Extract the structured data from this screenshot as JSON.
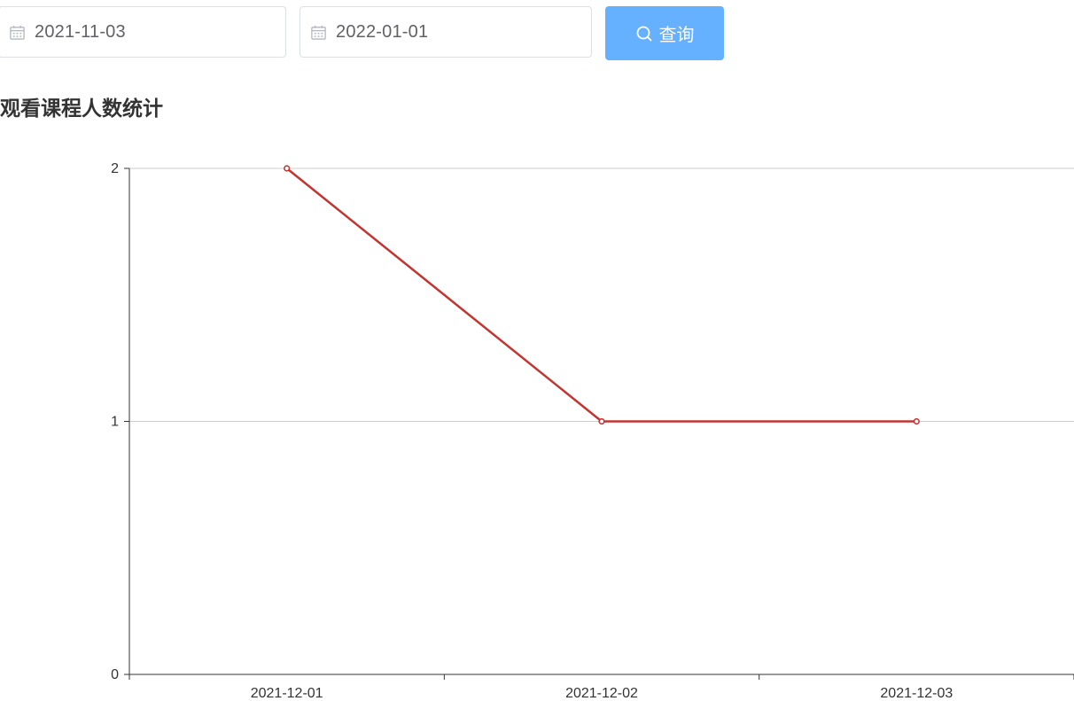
{
  "filters": {
    "start_date": "2021-11-03",
    "end_date": "2022-01-01",
    "query_label": "查询",
    "icons": {
      "date": "calendar-icon",
      "query": "search-icon"
    }
  },
  "chart_data": {
    "type": "line",
    "title": "观看课程人数统计",
    "categories": [
      "2021-12-01",
      "2021-12-02",
      "2021-12-03"
    ],
    "series": [
      {
        "values": [
          2,
          1,
          1
        ],
        "color": "#c23531"
      }
    ],
    "ylim": [
      0,
      2
    ],
    "yticks": [
      0,
      1,
      2
    ],
    "grid": true
  },
  "colors": {
    "primary_button": "#66b1ff",
    "line": "#c23531",
    "grid": "#cccccc",
    "axis": "#333333"
  }
}
